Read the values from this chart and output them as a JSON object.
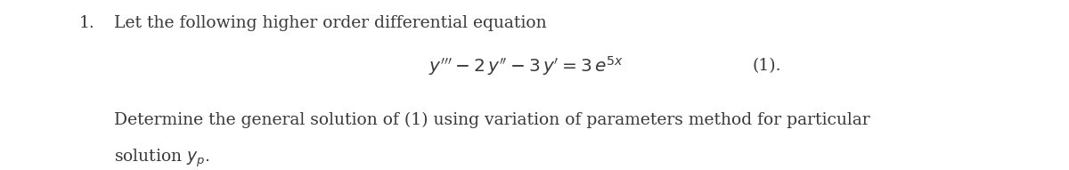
{
  "figsize": [
    12.0,
    1.91
  ],
  "dpi": 100,
  "background_color": "#ffffff",
  "text_color": "#3a3a3a",
  "item_number": "1.",
  "line1_text": "Let the following higher order differential equation",
  "equation": "$y''' - 2\\,y'' - 3\\,y' = 3\\,e^{5x}$",
  "equation_label": "(1).",
  "line3_text": "Determine the general solution of (1) using variation of parameters method for particular",
  "line4_text": "solution $y_p$.",
  "font_size_main": 13.5,
  "font_size_eq": 14.5,
  "font_family": "serif"
}
